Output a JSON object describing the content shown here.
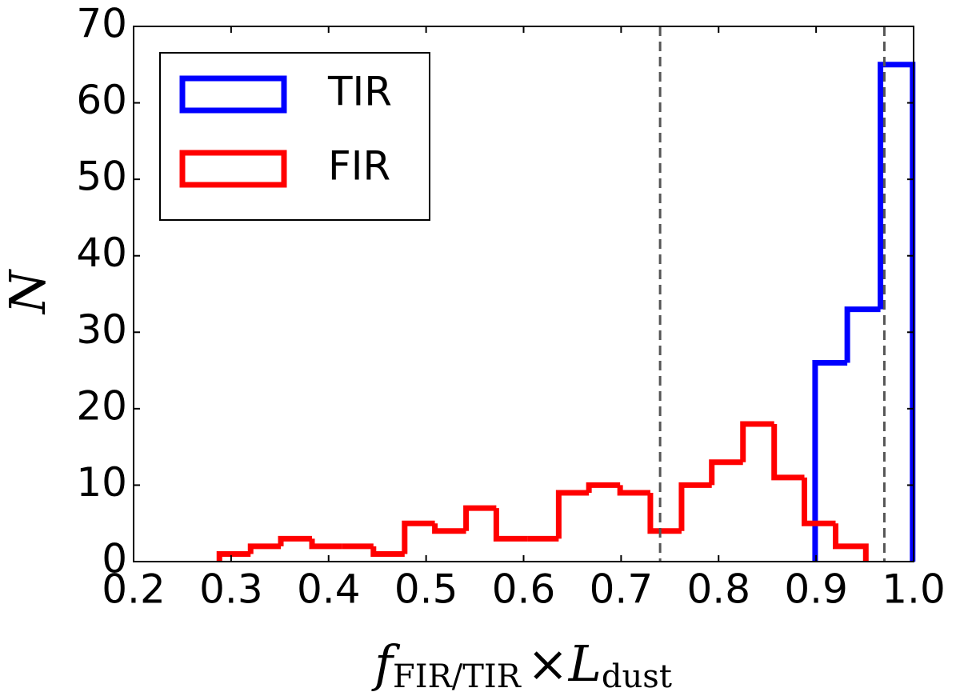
{
  "chart_data": {
    "type": "histogram",
    "xlabel": [
      "f",
      "FIR/TIR",
      "×L",
      "dust"
    ],
    "ylabel": "N",
    "xlim": [
      0.2,
      1.0
    ],
    "xticks": [
      0.2,
      0.3,
      0.4,
      0.5,
      0.6,
      0.7,
      0.8,
      0.9,
      {
        "value": 1.0,
        "label": "1.0"
      }
    ],
    "ylim": [
      0,
      70
    ],
    "yticks": [
      0,
      10,
      20,
      30,
      40,
      50,
      60,
      70
    ],
    "legend": "upper left",
    "vlines": [
      0.74,
      0.97
    ],
    "vline_color": "#555555",
    "series": [
      {
        "name": "TIR",
        "color": "#0000ff",
        "bins": [
          0.899,
          0.932,
          0.966,
          0.999
        ],
        "values": [
          26,
          33,
          65
        ]
      },
      {
        "name": "FIR",
        "color": "#ff0000",
        "bins": [
          0.288,
          0.32,
          0.351,
          0.383,
          0.414,
          0.446,
          0.478,
          0.509,
          0.541,
          0.572,
          0.604,
          0.636,
          0.667,
          0.699,
          0.73,
          0.762,
          0.793,
          0.825,
          0.857,
          0.888,
          0.92,
          0.951
        ],
        "values": [
          1,
          2,
          3,
          2,
          2,
          1,
          5,
          4,
          7,
          3,
          3,
          9,
          10,
          9,
          4,
          10,
          13,
          18,
          11,
          5,
          2
        ]
      }
    ]
  }
}
